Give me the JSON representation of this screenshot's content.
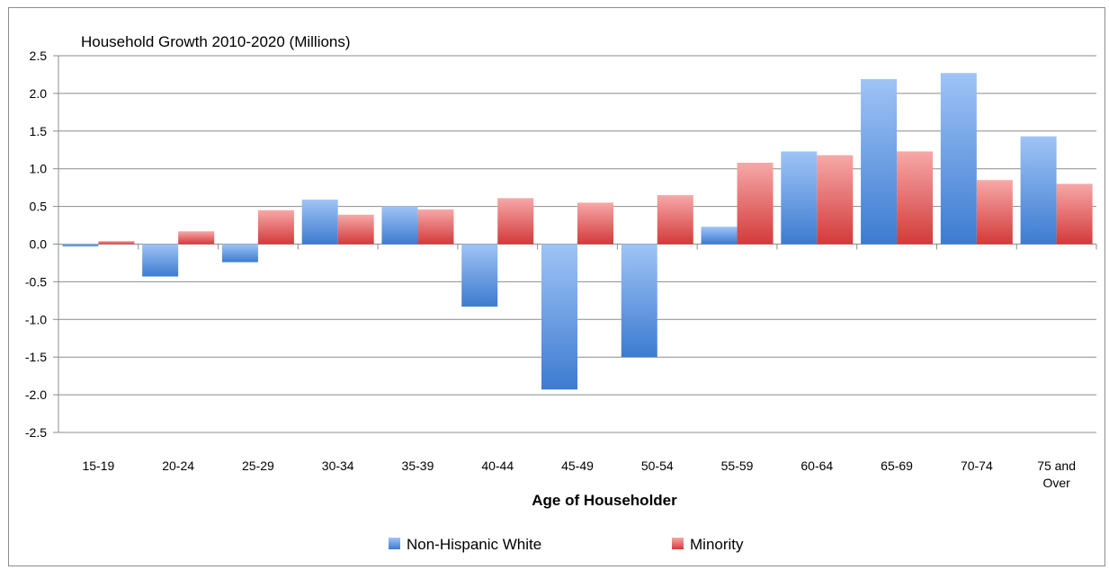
{
  "chart_data": {
    "type": "bar",
    "title": "Household Growth 2010-2020 (Millions)",
    "xlabel": "Age of Householder",
    "ylabel": "",
    "ylim": [
      -2.5,
      2.5
    ],
    "y_ticks": [
      "2.5",
      "2.0",
      "1.5",
      "1.0",
      "0.5",
      "0.0",
      "-0.5",
      "-1.0",
      "-1.5",
      "-2.0",
      "-2.5"
    ],
    "grid": true,
    "legend_position": "bottom",
    "categories": [
      [
        "15-19"
      ],
      [
        "20-24"
      ],
      [
        "25-29"
      ],
      [
        "30-34"
      ],
      [
        "35-39"
      ],
      [
        "40-44"
      ],
      [
        "45-49"
      ],
      [
        "50-54"
      ],
      [
        "55-59"
      ],
      [
        "60-64"
      ],
      [
        "65-69"
      ],
      [
        "70-74"
      ],
      [
        "75 and",
        "Over"
      ]
    ],
    "series": [
      {
        "name": "Non-Hispanic White",
        "color": "#4a86d8",
        "values": [
          -0.03,
          -0.43,
          -0.24,
          0.59,
          0.5,
          -0.83,
          -1.93,
          -1.5,
          0.23,
          1.23,
          2.19,
          2.27,
          1.43
        ]
      },
      {
        "name": "Minority",
        "color": "#e05c5c",
        "values": [
          0.04,
          0.17,
          0.45,
          0.39,
          0.46,
          0.61,
          0.55,
          0.65,
          1.08,
          1.18,
          1.23,
          0.85,
          0.8
        ]
      }
    ]
  }
}
